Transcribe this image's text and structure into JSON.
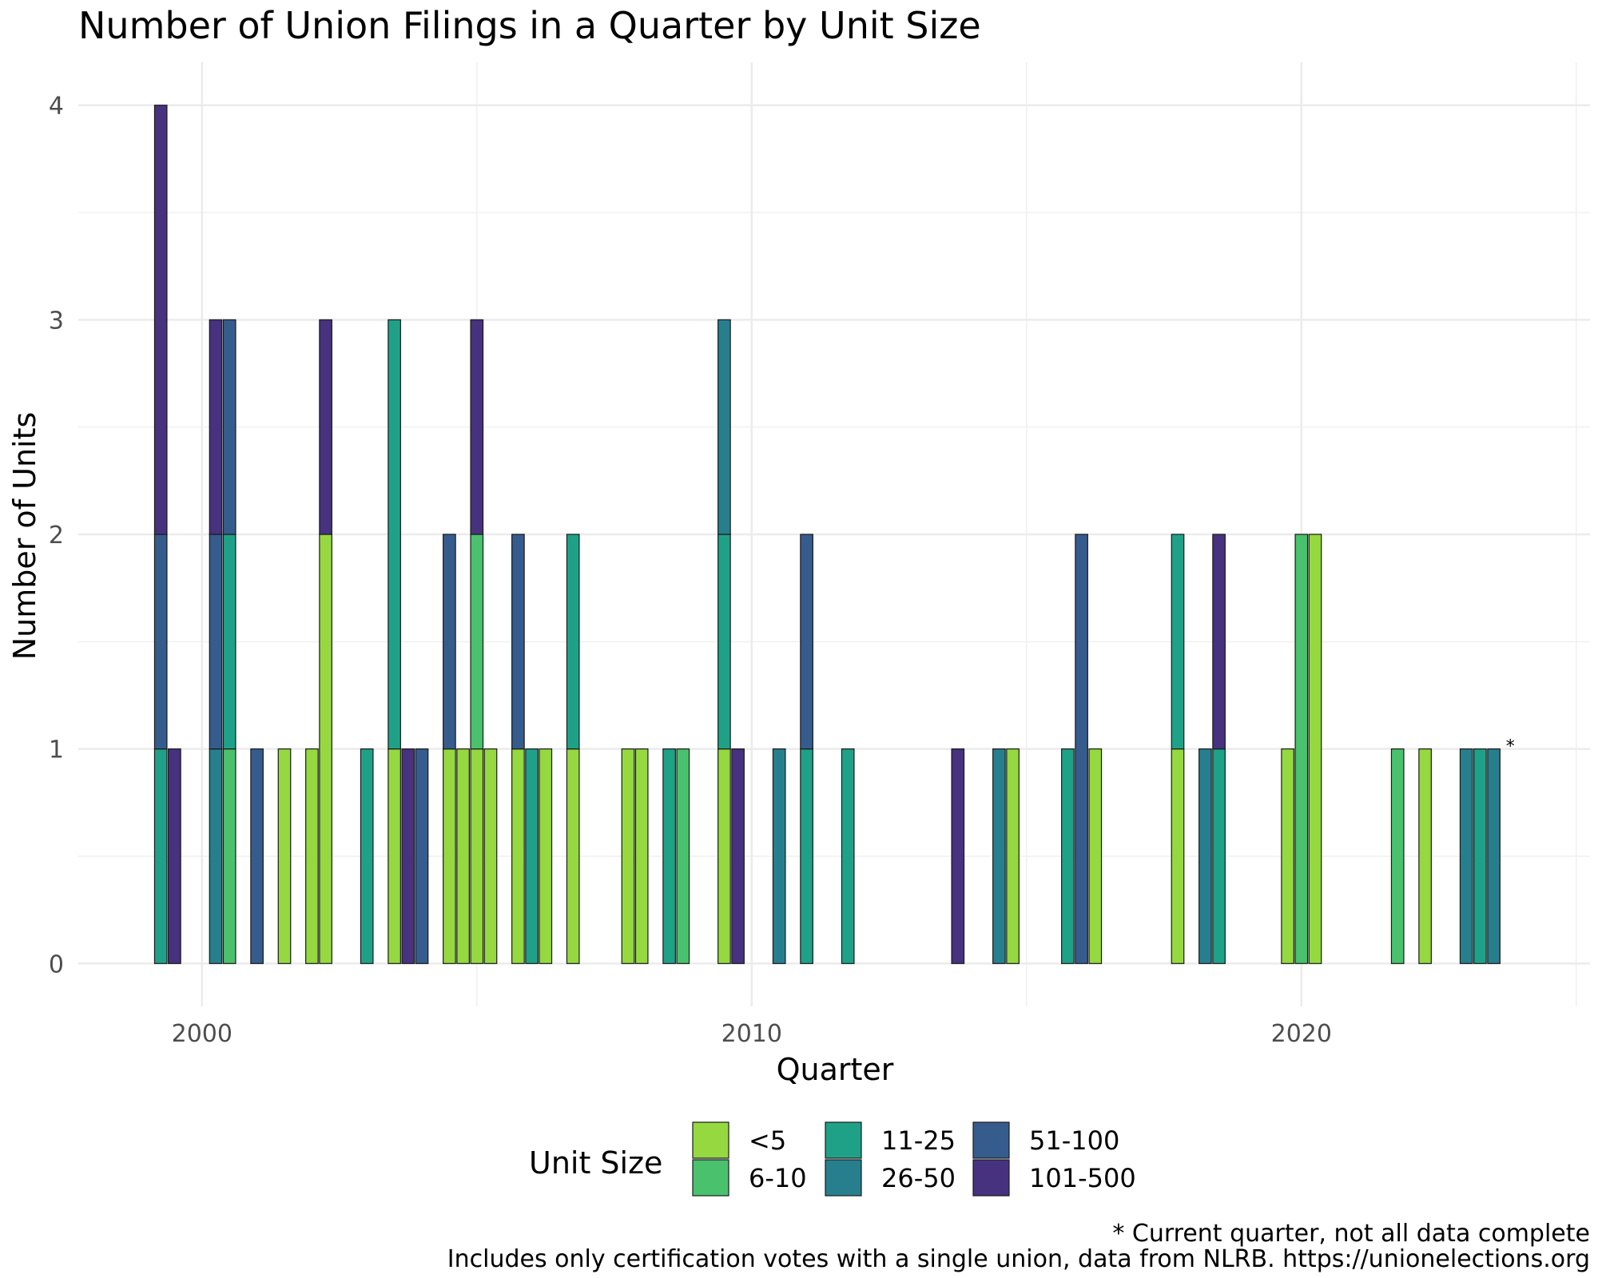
{
  "chart_data": {
    "type": "bar",
    "stacked": true,
    "title": "Number of Union Filings in a Quarter by Unit Size",
    "xlabel": "Quarter",
    "ylabel": "Number of Units",
    "xlim": [
      1997.75,
      2025.25
    ],
    "ylim": [
      -0.2,
      4.2
    ],
    "x_ticks": [
      2000,
      2010,
      2020
    ],
    "x_tick_labels": [
      "2000",
      "2010",
      "2020"
    ],
    "y_ticks": [
      0,
      1,
      2,
      3,
      4
    ],
    "y_tick_labels": [
      "0",
      "1",
      "2",
      "3",
      "4"
    ],
    "grid": true,
    "legend": {
      "title": "Unit Size",
      "position": "bottom",
      "items": [
        {
          "label": "<5",
          "color": "#95D840"
        },
        {
          "label": "6-10",
          "color": "#4AC16D"
        },
        {
          "label": "11-25",
          "color": "#1FA187"
        },
        {
          "label": "26-50",
          "color": "#277F8E"
        },
        {
          "label": "51-100",
          "color": "#365C8D"
        },
        {
          "label": "101-500",
          "color": "#46327E"
        }
      ]
    },
    "series": [
      {
        "name": "<5",
        "color": "#95D840",
        "points": [
          [
            2001.5,
            1
          ],
          [
            2002.0,
            1
          ],
          [
            2002.25,
            2
          ],
          [
            2003.5,
            1
          ],
          [
            2004.5,
            1
          ],
          [
            2004.75,
            1
          ],
          [
            2005.0,
            1
          ],
          [
            2005.25,
            1
          ],
          [
            2005.75,
            1
          ],
          [
            2006.25,
            1
          ],
          [
            2006.75,
            1
          ],
          [
            2007.75,
            1
          ],
          [
            2008.0,
            1
          ],
          [
            2009.5,
            1
          ],
          [
            2014.75,
            1
          ],
          [
            2016.25,
            1
          ],
          [
            2017.75,
            1
          ],
          [
            2019.75,
            1
          ],
          [
            2020.25,
            2
          ],
          [
            2022.25,
            1
          ]
        ]
      },
      {
        "name": "6-10",
        "color": "#4AC16D",
        "points": [
          [
            2000.5,
            1
          ],
          [
            2005.0,
            1
          ],
          [
            2008.75,
            1
          ],
          [
            2020.0,
            2
          ],
          [
            2021.75,
            1
          ]
        ]
      },
      {
        "name": "11-25",
        "color": "#1FA187",
        "points": [
          [
            1999.25,
            1
          ],
          [
            2000.5,
            1
          ],
          [
            2003.0,
            1
          ],
          [
            2003.5,
            2
          ],
          [
            2006.0,
            1
          ],
          [
            2006.75,
            1
          ],
          [
            2008.5,
            1
          ],
          [
            2009.5,
            1
          ],
          [
            2011.0,
            1
          ],
          [
            2011.75,
            1
          ],
          [
            2015.75,
            1
          ],
          [
            2017.75,
            1
          ],
          [
            2018.5,
            1
          ],
          [
            2023.25,
            1
          ]
        ]
      },
      {
        "name": "26-50",
        "color": "#277F8E",
        "points": [
          [
            2000.25,
            1
          ],
          [
            2009.5,
            1
          ],
          [
            2010.5,
            1
          ],
          [
            2014.5,
            1
          ],
          [
            2018.25,
            1
          ],
          [
            2023.0,
            1
          ],
          [
            2023.5,
            1
          ]
        ]
      },
      {
        "name": "51-100",
        "color": "#365C8D",
        "points": [
          [
            1999.25,
            1
          ],
          [
            2000.25,
            1
          ],
          [
            2000.5,
            1
          ],
          [
            2001.0,
            1
          ],
          [
            2004.0,
            1
          ],
          [
            2004.5,
            1
          ],
          [
            2005.75,
            1
          ],
          [
            2011.0,
            1
          ],
          [
            2016.0,
            2
          ]
        ]
      },
      {
        "name": "101-500",
        "color": "#46327E",
        "points": [
          [
            1999.25,
            2
          ],
          [
            1999.5,
            1
          ],
          [
            2000.25,
            1
          ],
          [
            2002.25,
            1
          ],
          [
            2003.75,
            1
          ],
          [
            2005.0,
            1
          ],
          [
            2009.75,
            1
          ],
          [
            2013.75,
            1
          ],
          [
            2018.5,
            1
          ]
        ]
      }
    ],
    "annotations": [
      {
        "text": "*",
        "x": 2023.75,
        "y": 1
      }
    ],
    "caption_lines": [
      "* Current quarter, not all data complete",
      "Includes only certification votes with a single union, data from NLRB. https://unionelections.org"
    ]
  }
}
